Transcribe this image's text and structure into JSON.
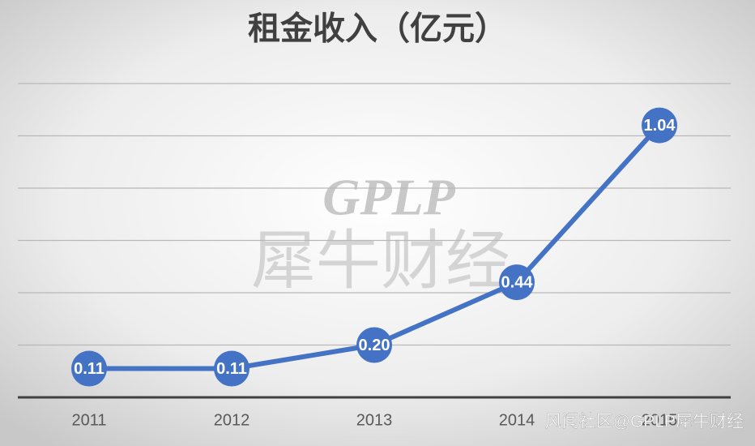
{
  "chart_data": {
    "type": "line",
    "title": "租金收入（亿元）",
    "categories": [
      "2011",
      "2012",
      "2013",
      "2014",
      "2015"
    ],
    "series": [
      {
        "name": "租金收入",
        "color": "#4472c4",
        "values": [
          0.11,
          0.11,
          0.2,
          0.44,
          1.04
        ],
        "value_labels": [
          "0.11",
          "0.11",
          "0.20",
          "0.44",
          "1.04"
        ]
      }
    ],
    "ylim": [
      0,
      1.2
    ],
    "yticks": [
      0,
      0.2,
      0.4,
      0.6,
      0.8,
      1,
      1.2
    ],
    "grid": true,
    "watermarks": [
      "GPLP",
      "犀牛财经",
      "风闻社区@GPLP犀牛财经"
    ]
  }
}
